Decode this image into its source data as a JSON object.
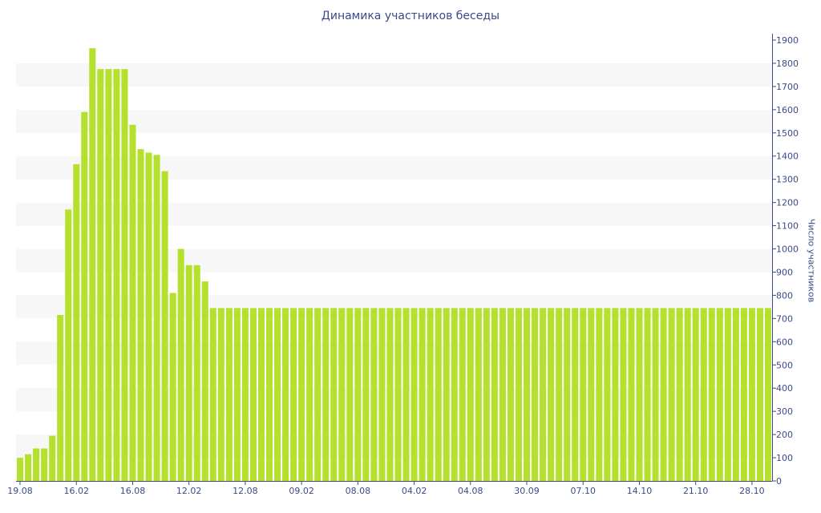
{
  "chart_data": {
    "type": "bar",
    "title": "Динамика участников беседы",
    "xlabel": "",
    "ylabel": "Число участников",
    "ylim": [
      0,
      1900
    ],
    "y_ticks": [
      0,
      100,
      200,
      300,
      400,
      500,
      600,
      700,
      800,
      900,
      1000,
      1100,
      1200,
      1300,
      1400,
      1500,
      1600,
      1700,
      1800,
      1900
    ],
    "y_axis_side": "right",
    "grid": "alternating horizontal bands",
    "legend": "none",
    "x_tick_labels": [
      {
        "label": "19.08",
        "index": 0
      },
      {
        "label": "16.02",
        "index": 7
      },
      {
        "label": "16.08",
        "index": 14
      },
      {
        "label": "12.02",
        "index": 21
      },
      {
        "label": "12.08",
        "index": 28
      },
      {
        "label": "09.02",
        "index": 35
      },
      {
        "label": "08.08",
        "index": 42
      },
      {
        "label": "04.02",
        "index": 49
      },
      {
        "label": "04.08",
        "index": 56
      },
      {
        "label": "30.09",
        "index": 63
      },
      {
        "label": "07.10",
        "index": 70
      },
      {
        "label": "14.10",
        "index": 77
      },
      {
        "label": "21.10",
        "index": 84
      },
      {
        "label": "28.10",
        "index": 91
      }
    ],
    "values": [
      100,
      115,
      140,
      140,
      195,
      715,
      1170,
      1365,
      1590,
      1865,
      1775,
      1775,
      1775,
      1775,
      1535,
      1430,
      1415,
      1405,
      1335,
      810,
      1000,
      930,
      930,
      860,
      745,
      745,
      745,
      745,
      745,
      745,
      745,
      745,
      745,
      745,
      745,
      745,
      745,
      745,
      745,
      745,
      745,
      745,
      745,
      745,
      745,
      745,
      745,
      745,
      745,
      745,
      745,
      745,
      745,
      745,
      745,
      745,
      745,
      745,
      745,
      745,
      745,
      745,
      745,
      745,
      745,
      745,
      745,
      745,
      745,
      745,
      745,
      745,
      745,
      745,
      745,
      745,
      745,
      745,
      745,
      745,
      745,
      745,
      745,
      745,
      745,
      745,
      745,
      745,
      745,
      745,
      745,
      745,
      745,
      745
    ],
    "colors": {
      "bar": "#b5e12e",
      "band": "#f7f7f7",
      "axis": "#3b4a8a",
      "text": "#3b4a8a"
    }
  }
}
